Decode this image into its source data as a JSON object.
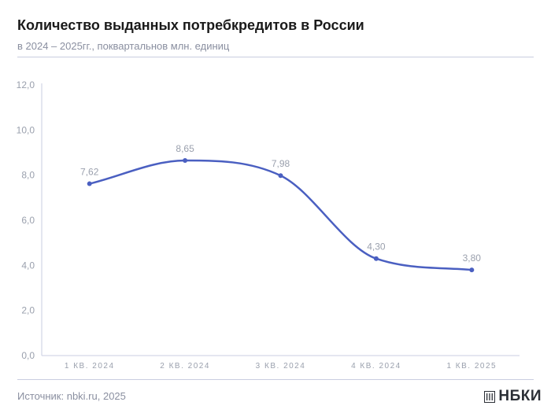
{
  "header": {
    "title": "Количество выданных потребкредитов в России",
    "subtitle": "в 2024 – 2025гг., поквартальнов млн. единиц"
  },
  "footer": {
    "source": "Источник: nbki.ru, 2025",
    "logo_text": "НБКИ"
  },
  "colors": {
    "series": "#4a5fc1",
    "axis_text": "#9aa0ad",
    "axis_line": "#c9cde0"
  },
  "chart_data": {
    "type": "line",
    "smooth": true,
    "categories": [
      "1 КВ. 2024",
      "2 КВ. 2024",
      "3 КВ. 2024",
      "4 КВ. 2024",
      "1 КВ. 2025"
    ],
    "series": [
      {
        "values": [
          7.62,
          8.65,
          7.98,
          4.3,
          3.8
        ],
        "labels": [
          "7,62",
          "8,65",
          "7,98",
          "4,30",
          "3,80"
        ]
      }
    ],
    "y_ticks": [
      0,
      2,
      4,
      6,
      8,
      10,
      12
    ],
    "y_tick_labels": [
      "0,0",
      "2,0",
      "4,0",
      "6,0",
      "8,0",
      "10,0",
      "12,0"
    ],
    "ylim": [
      0,
      12
    ],
    "grid": false
  }
}
